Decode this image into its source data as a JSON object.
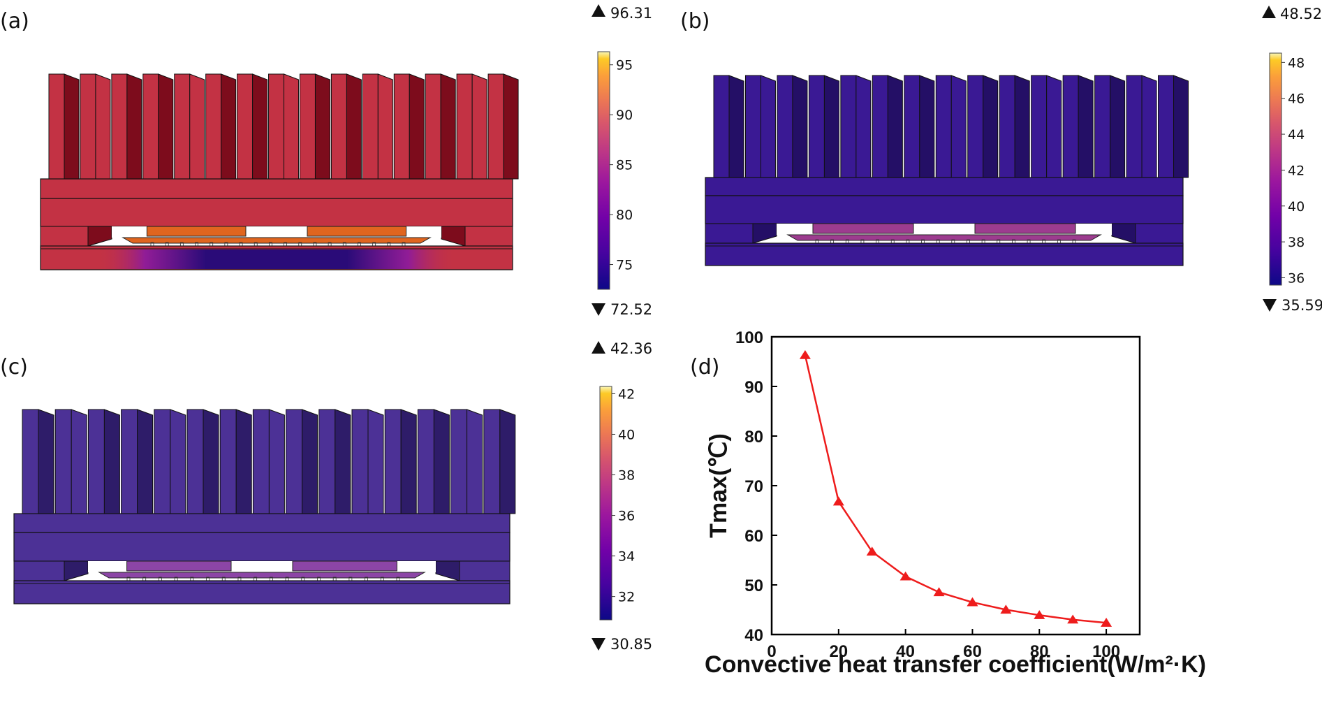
{
  "panels": {
    "a": {
      "label": "(a)",
      "colorbar": {
        "max_label": "96.31",
        "min_label": "72.52",
        "ticks": [
          "95",
          "90",
          "85",
          "80",
          "75"
        ],
        "tick_values": [
          95,
          90,
          85,
          80,
          75
        ],
        "range": [
          72.52,
          96.31
        ],
        "colormap": "plasma"
      }
    },
    "b": {
      "label": "(b)",
      "colorbar": {
        "max_label": "48.52",
        "min_label": "35.59",
        "ticks": [
          "48",
          "46",
          "44",
          "42",
          "40",
          "38",
          "36"
        ],
        "tick_values": [
          48,
          46,
          44,
          42,
          40,
          38,
          36
        ],
        "range": [
          35.59,
          48.52
        ],
        "colormap": "plasma"
      }
    },
    "c": {
      "label": "(c)",
      "colorbar": {
        "max_label": "42.36",
        "min_label": "30.85",
        "ticks": [
          "42",
          "40",
          "38",
          "36",
          "34",
          "32"
        ],
        "tick_values": [
          42,
          40,
          38,
          36,
          34,
          32
        ],
        "range": [
          30.85,
          42.36
        ],
        "colormap": "plasma"
      }
    },
    "d": {
      "label": "(d)"
    }
  },
  "heatsinks": {
    "a": {
      "body_color": "#c33244",
      "dark_color": "#7d0c1c",
      "chip_color": "#e0651f",
      "hot_spot_color": "#1e0b67"
    },
    "b": {
      "body_color": "#3a1994",
      "dark_color": "#240f66",
      "chip_color": "#9d3c8f"
    },
    "c": {
      "body_color": "#4c3196",
      "dark_color": "#2e1c69",
      "chip_color": "#8c45a6"
    }
  },
  "chart_data": {
    "type": "line",
    "x": [
      10,
      20,
      30,
      40,
      50,
      60,
      70,
      80,
      90,
      100
    ],
    "y": [
      96.31,
      66.8,
      56.7,
      51.7,
      48.52,
      46.5,
      45.0,
      43.9,
      43.0,
      42.36
    ],
    "xlabel": "Convective heat transfer coefficient(W/m²·K)",
    "ylabel": "Tmax(℃)",
    "xlim": [
      0,
      110
    ],
    "ylim": [
      40,
      100
    ],
    "xticks": [
      "0",
      "20",
      "40",
      "60",
      "80",
      "100"
    ],
    "yticks": [
      "40",
      "50",
      "60",
      "70",
      "80",
      "90",
      "100"
    ],
    "marker": "triangle",
    "color": "#ee1c1c",
    "grid": false
  }
}
